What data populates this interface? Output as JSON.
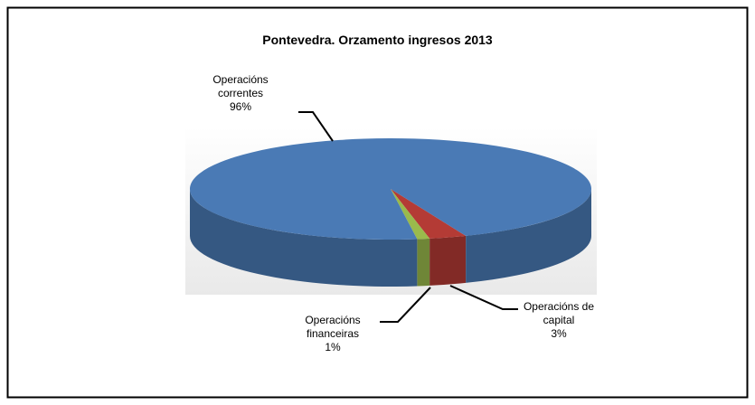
{
  "chart_data": {
    "type": "pie",
    "title": "Pontevedra. Orzamento ingresos 2013",
    "categories": [
      "Operacións correntes",
      "Operacións de capital",
      "Operacións financeiras"
    ],
    "values": [
      96,
      3,
      1
    ],
    "value_labels": [
      "96%",
      "3%",
      "1%"
    ],
    "colors": [
      "#4a7ab5",
      "#b43b35",
      "#9aba4c"
    ]
  }
}
